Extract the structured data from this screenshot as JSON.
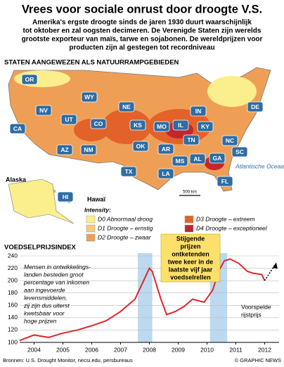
{
  "header": {
    "title": "Vrees voor sociale onrust door droogte V.S.",
    "subtitle": [
      "Amerika's ergste droogte sinds de jaren 1930 duurt waarschijnlijk",
      "tot oktober en zal oogsten decimeren. De Verenigde Staten zijn werelds",
      "grootste exporteur van maïs, tarwe en sojabonen. De wereldprijzen voor",
      "producten zijn al gestegen tot recordniveau"
    ]
  },
  "map": {
    "title": "STATEN AANGEWEZEN ALS NATUURRAMPGEBIEDEN",
    "states": [
      "OR",
      "WY",
      "NE",
      "IN",
      "DE",
      "NV",
      "UT",
      "CO",
      "KS",
      "MO",
      "IL",
      "KY",
      "CA",
      "TN",
      "NC",
      "AZ",
      "NM",
      "OK",
      "AR",
      "SC",
      "MS",
      "AL",
      "GA",
      "TX",
      "LA",
      "FL",
      "HI"
    ],
    "alaska": "Alaska",
    "hawaii": "Hawaï",
    "ocean": "Atlantische Oceaan",
    "scale": "500 km"
  },
  "legend": {
    "title": "Intensity:",
    "items": [
      {
        "label": "D0 Abnormaal droog",
        "color": "#fbee8c"
      },
      {
        "label": "D1 Droogte – ernstig",
        "color": "#f6c877"
      },
      {
        "label": "D2 Droogte – zwaar",
        "color": "#ef9f55"
      },
      {
        "label": "D3 Droogte – extreem",
        "color": "#e2622a"
      },
      {
        "label": "D4 Droogte – exceptioneel",
        "color": "#c1272d"
      }
    ]
  },
  "chart_data": {
    "type": "line",
    "title": "VOEDSELPRIJSINDEX",
    "series": [
      {
        "name": "Voedselprijsindex",
        "color": "#e0262b",
        "x": [
          2004.0,
          2004.5,
          2005.0,
          2005.5,
          2006.0,
          2006.5,
          2007.0,
          2007.5,
          2008.0,
          2008.3,
          2008.5,
          2008.6,
          2008.9,
          2009.1,
          2009.4,
          2009.7,
          2010.0,
          2010.4,
          2010.7,
          2010.9,
          2011.1,
          2011.3,
          2011.6,
          2011.9,
          2012.1,
          2012.4,
          2012.5
        ],
        "values": [
          103,
          112,
          108,
          115,
          120,
          127,
          135,
          150,
          170,
          200,
          220,
          215,
          170,
          145,
          150,
          158,
          170,
          165,
          185,
          215,
          232,
          235,
          228,
          215,
          212,
          210,
          200
        ]
      },
      {
        "name": "Voorspelde rijstprijs",
        "color": "#000000",
        "x": [
          2012.5,
          2012.85
        ],
        "values": [
          200,
          225
        ]
      }
    ],
    "highlights": [
      [
        2008.1,
        2008.6
      ],
      [
        2010.6,
        2011.2
      ]
    ],
    "highlight_color": "#bcd9ef",
    "xlim": [
      2004,
      2013
    ],
    "ylim": [
      100,
      240
    ],
    "yticks": [
      100,
      120,
      140,
      160,
      180,
      200,
      220,
      240
    ],
    "xticks": [
      {
        "value": 2004.5,
        "label": "2004"
      },
      {
        "value": 2005.5,
        "label": "2005"
      },
      {
        "value": 2006.5,
        "label": "2006"
      },
      {
        "value": 2007.5,
        "label": "2007"
      },
      {
        "value": 2008.5,
        "label": "2008"
      },
      {
        "value": 2009.5,
        "label": "2009"
      },
      {
        "value": 2010.5,
        "label": "2010"
      },
      {
        "value": 2011.5,
        "label": "2011"
      },
      {
        "value": 2012.5,
        "label": "2012"
      }
    ],
    "grid": true,
    "note": [
      "Mensen in ontwikkelings-",
      "landen besteden groot",
      "percentage van inkomen",
      "aan ingevoerde",
      "levensmiddelen,",
      "zij zijn dus uiterst",
      "kwetsbaar voor",
      "hoge prijzen"
    ],
    "callout": [
      "Stijgende",
      "prijzen",
      "ontketenden",
      "twee keer in de",
      "laatste vijf jaar",
      "voedselrellen"
    ],
    "forecast_label": [
      "Voorspelde",
      "rijstprijs"
    ]
  },
  "footer": {
    "source": "Bronnen: U.S. Drought Monitor, necsi.edu, persbureaus",
    "credit": "© GRAPHIC NEWS"
  }
}
